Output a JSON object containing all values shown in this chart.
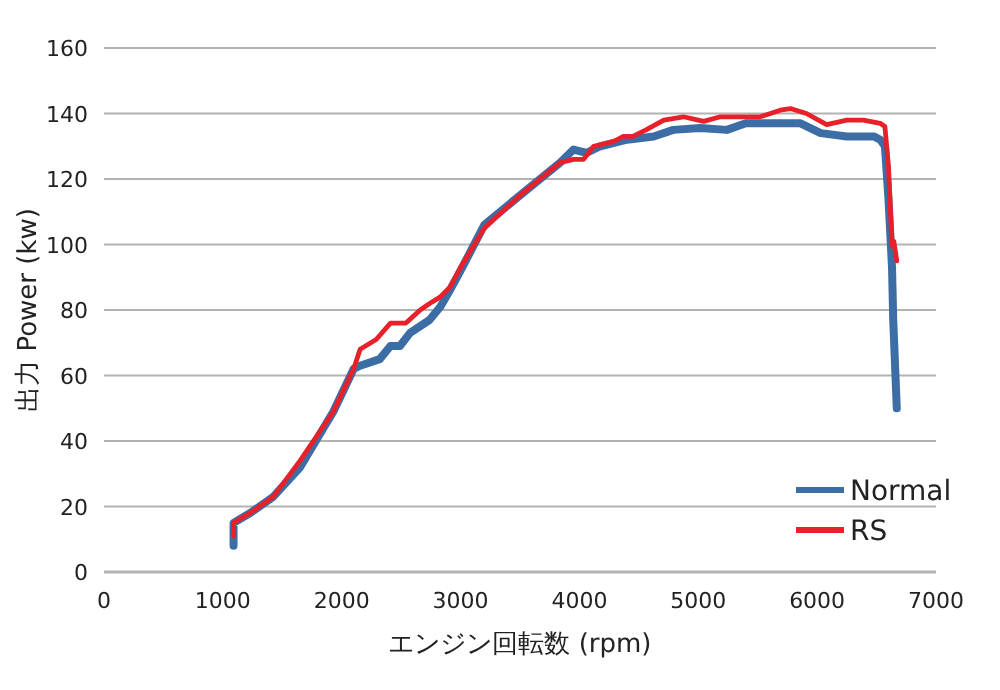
{
  "chart_data": {
    "type": "line",
    "xlabel": "エンジン回転数 (rpm)",
    "ylabel": "出力 Power (kw)",
    "xlim": [
      0,
      7000
    ],
    "ylim": [
      0,
      160
    ],
    "xticks": [
      0,
      1000,
      2000,
      3000,
      4000,
      5000,
      6000,
      7000
    ],
    "yticks": [
      0,
      20,
      40,
      60,
      80,
      100,
      120,
      140,
      160
    ],
    "grid": "y",
    "legend": "bottom right",
    "marker": "none",
    "line_style": "solid",
    "series": [
      {
        "name": "Normal",
        "color": "#3c6ea5",
        "x": [
          1090,
          1090,
          1230,
          1425,
          1650,
          1930,
          2100,
          2155,
          2320,
          2410,
          2490,
          2575,
          2740,
          2830,
          2910,
          3000,
          3200,
          3500,
          3838,
          3950,
          4060,
          4175,
          4400,
          4625,
          4790,
          5015,
          5240,
          5400,
          5640,
          5860,
          6030,
          6250,
          6480,
          6530,
          6570,
          6600,
          6630,
          6640,
          6670
        ],
        "values": [
          8,
          15,
          18,
          23,
          32,
          49,
          62,
          63,
          65,
          69,
          69,
          73,
          77,
          81,
          86,
          92,
          106,
          115,
          125,
          129,
          128,
          130,
          132,
          133,
          135,
          135.6,
          135,
          137,
          137,
          137,
          134,
          133,
          133,
          132,
          130,
          114,
          93,
          77,
          50
        ]
      },
      {
        "name": "RS",
        "color": "#e8202a",
        "x": [
          1090,
          1090,
          1230,
          1425,
          1650,
          1930,
          2100,
          2155,
          2290,
          2410,
          2540,
          2660,
          2740,
          2830,
          2910,
          3000,
          3200,
          3500,
          3838,
          3950,
          4035,
          4120,
          4290,
          4370,
          4450,
          4560,
          4710,
          4875,
          5045,
          5185,
          5355,
          5520,
          5690,
          5775,
          5910,
          6080,
          6250,
          6390,
          6530,
          6570,
          6600,
          6630,
          6645,
          6670
        ],
        "values": [
          11,
          15,
          18,
          23,
          34,
          49,
          62,
          68,
          71,
          76,
          76,
          80,
          82,
          84,
          87,
          93,
          105,
          115,
          125,
          126,
          126,
          130,
          131.5,
          133,
          133,
          135,
          138,
          139,
          137.6,
          139,
          139,
          139,
          141,
          141.5,
          140,
          136.6,
          138,
          138,
          137,
          136,
          124,
          99.5,
          101,
          95
        ]
      }
    ]
  }
}
